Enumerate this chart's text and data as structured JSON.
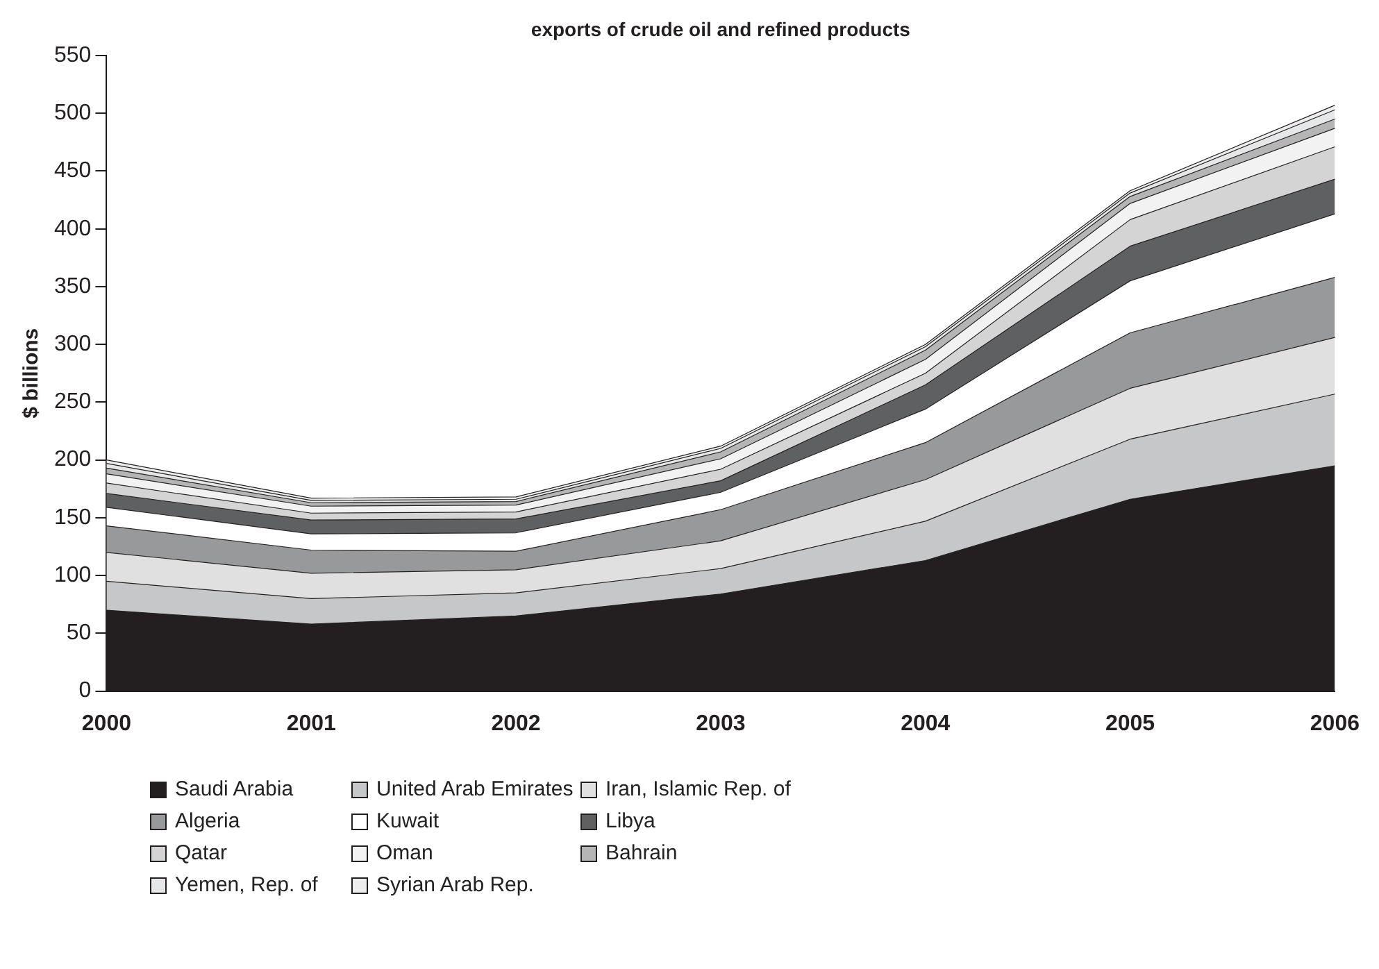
{
  "chart_data": {
    "type": "area",
    "stacked": true,
    "title": "exports of crude oil and refined products",
    "ylabel": "$ billions",
    "categories": [
      "2000",
      "2001",
      "2002",
      "2003",
      "2004",
      "2005",
      "2006"
    ],
    "ylim": [
      0,
      550
    ],
    "yticks": [
      0,
      50,
      100,
      150,
      200,
      250,
      300,
      350,
      400,
      450,
      500,
      550
    ],
    "legend": "bottom",
    "series": [
      {
        "name": "Saudi Arabia",
        "color": "#231f20",
        "values": [
          70,
          58,
          65,
          84,
          113,
          166,
          195
        ]
      },
      {
        "name": "United Arab Emirates",
        "color": "#c6c7c8",
        "values": [
          25,
          22,
          20,
          22,
          34,
          52,
          62
        ]
      },
      {
        "name": "Iran, Islamic Rep. of",
        "color": "#e0e0e0",
        "values": [
          25,
          22,
          20,
          24,
          36,
          44,
          49
        ]
      },
      {
        "name": "Algeria",
        "color": "#98999b",
        "values": [
          23,
          20,
          16,
          27,
          32,
          48,
          52
        ]
      },
      {
        "name": "Kuwait",
        "color": "#ffffff",
        "values": [
          16,
          14,
          16,
          15,
          29,
          45,
          55
        ]
      },
      {
        "name": "Libya",
        "color": "#5f6062",
        "values": [
          12,
          12,
          12,
          10,
          21,
          30,
          30
        ]
      },
      {
        "name": "Qatar",
        "color": "#d4d4d4",
        "values": [
          9,
          6,
          6,
          10,
          10,
          23,
          28
        ]
      },
      {
        "name": "Oman",
        "color": "#f2f2f2",
        "values": [
          8,
          6,
          6,
          9,
          12,
          14,
          16
        ]
      },
      {
        "name": "Bahrain",
        "color": "#b5b5b5",
        "values": [
          5,
          3,
          3,
          6,
          8,
          6,
          8
        ]
      },
      {
        "name": "Yemen, Rep. of",
        "color": "#e6e7e8",
        "values": [
          4,
          2,
          2,
          3,
          3,
          3,
          8
        ]
      },
      {
        "name": "Syrian Arab Rep.",
        "color": "#ededed",
        "values": [
          3,
          2,
          2,
          2,
          2,
          2,
          4
        ]
      }
    ]
  }
}
